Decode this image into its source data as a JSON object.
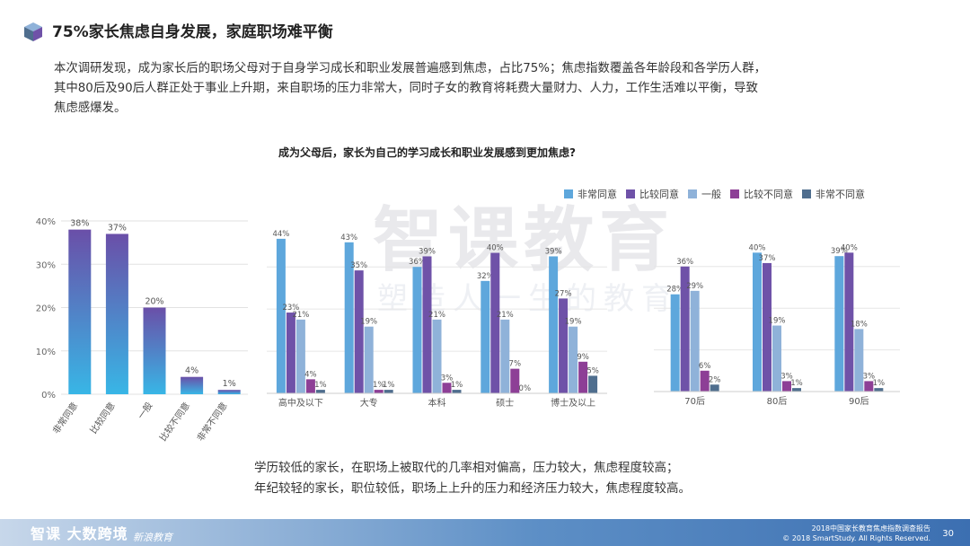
{
  "header": {
    "title": "75%家长焦虑自身发展，家庭职场难平衡"
  },
  "intro": {
    "lines": [
      "本次调研发现，成为家长后的职场父母对于自身学习成长和职业发展普遍感到焦虑，占比75%；焦虑指数覆盖各年龄段和各学历人群，",
      "其中80后及90后人群正处于事业上升期，来自职场的压力非常大，同时子女的教育将耗费大量财力、人力，工作生活难以平衡，导致",
      "焦虑感爆发。"
    ]
  },
  "watermark": {
    "text": "智课教育",
    "sub": "塑造人一生的教育"
  },
  "chart_title": "成为父母后，家长为自己的学习成长和职业发展感到更加焦虑?",
  "colors": [
    "#5ea7dc",
    "#6f52a8",
    "#8fb2d9",
    "#8d3f96",
    "#4f6e8e"
  ],
  "chart_data": [
    {
      "type": "bar",
      "title": "",
      "categories": [
        "非常同意",
        "比较同意",
        "一般",
        "比较不同意",
        "非常不同意"
      ],
      "values": [
        38,
        37,
        20,
        4,
        1
      ],
      "value_labels": [
        "38%",
        "37%",
        "20%",
        "4%",
        "1%"
      ],
      "yticks": [
        "40%",
        "30%",
        "20%",
        "10%",
        "0%"
      ],
      "ylim": [
        0,
        40
      ],
      "grid": true
    },
    {
      "type": "bar",
      "title": "",
      "categories": [
        "高中及以下",
        "大专",
        "本科",
        "硕士",
        "博士及以上"
      ],
      "series": [
        {
          "name": "非常同意",
          "values": [
            44,
            43,
            36,
            32,
            39
          ]
        },
        {
          "name": "比较同意",
          "values": [
            23,
            35,
            39,
            40,
            27
          ]
        },
        {
          "name": "一般",
          "values": [
            21,
            19,
            21,
            21,
            19
          ]
        },
        {
          "name": "比较不同意",
          "values": [
            4,
            1,
            3,
            7,
            9
          ]
        },
        {
          "name": "非常不同意",
          "values": [
            1,
            1,
            1,
            0,
            5
          ]
        }
      ],
      "ylim": [
        0,
        45
      ],
      "grid": true
    },
    {
      "type": "bar",
      "title": "",
      "categories": [
        "70后",
        "80后",
        "90后"
      ],
      "series": [
        {
          "name": "非常同意",
          "values": [
            28,
            40,
            39
          ]
        },
        {
          "name": "比较同意",
          "values": [
            36,
            37,
            40
          ]
        },
        {
          "name": "一般",
          "values": [
            29,
            19,
            18
          ]
        },
        {
          "name": "比较不同意",
          "values": [
            6,
            3,
            3
          ]
        },
        {
          "name": "非常不同意",
          "values": [
            2,
            1,
            1
          ]
        }
      ],
      "ylim": [
        0,
        45
      ],
      "grid": true
    }
  ],
  "conclusion": {
    "lines": [
      "学历较低的家长，在职场上被取代的几率相对偏高，压力较大，焦虑程度较高；",
      "年纪较轻的家长，职位较低，职场上上升的压力和经济压力较大，焦虑程度较高。"
    ]
  },
  "footer": {
    "brand": "智课",
    "brand2": "大数跨境",
    "partner": "新浪教育",
    "report_line1": "2018中国家长教育焦虑指数调查报告",
    "report_line2": "© 2018 SmartStudy. All Rights Reserved.",
    "page": "30"
  }
}
